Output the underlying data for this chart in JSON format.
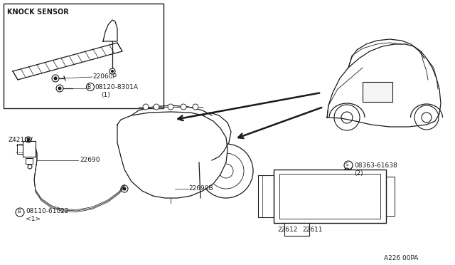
{
  "bg_color": "#FFFFFF",
  "fig_width": 6.4,
  "fig_height": 3.72,
  "dpi": 100,
  "line_color": "#1a1a1a",
  "text_color": "#1a1a1a",
  "labels": {
    "knock_sensor": "KNOCK SENSOR",
    "p22060": "22060P",
    "b08120": "B 08120-8301A",
    "b08120_qty": "(1)",
    "z4210v": "Z4210V",
    "p22690": "22690",
    "p22690b": "22690B",
    "b08110": "B 08110-61022",
    "b08110_qty": "<1>",
    "p22612": "22612",
    "p22611": "22611",
    "s08363": "S 08363-61638",
    "s08363_qty": "(2)",
    "diagram_code": "A226 00PA"
  }
}
